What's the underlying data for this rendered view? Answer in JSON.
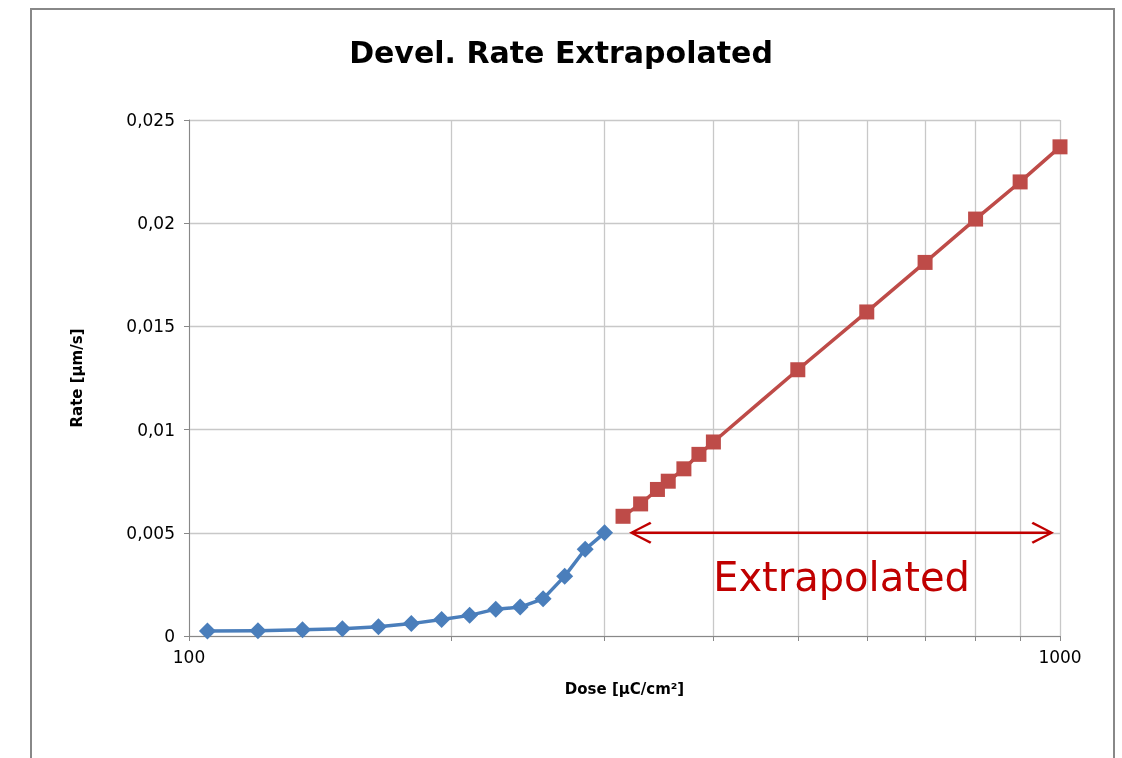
{
  "chart_data": {
    "type": "line",
    "title": "Devel. Rate Extrapolated",
    "xlabel": "Dose [µC/cm²]",
    "ylabel": "Rate [µm/s]",
    "log": "x",
    "xlim": [
      100,
      1000
    ],
    "xticks": [
      100,
      {
        "value": 200,
        "label": null
      },
      {
        "value": 300,
        "label": null
      },
      {
        "value": 400,
        "label": null
      },
      {
        "value": 500,
        "label": null
      },
      {
        "value": 600,
        "label": null
      },
      {
        "value": 700,
        "label": null
      },
      {
        "value": 800,
        "label": null
      },
      {
        "value": 900,
        "label": null
      },
      1000
    ],
    "ylim": [
      0,
      0.025
    ],
    "yticks": [
      0,
      {
        "value": 0.005,
        "label": "0,005"
      },
      {
        "value": 0.01,
        "label": "0,01"
      },
      {
        "value": 0.015,
        "label": "0,015"
      },
      {
        "value": 0.02,
        "label": "0,02"
      },
      {
        "value": 0.025,
        "label": "0,025"
      }
    ],
    "grid": true,
    "series": [
      {
        "color": "#4a7ebb",
        "marker": "diamond",
        "x": [
          105,
          120,
          135,
          150,
          165,
          180,
          195,
          210,
          225,
          240,
          255,
          270,
          285,
          300
        ],
        "values": [
          0.00024,
          0.00025,
          0.0003,
          0.00035,
          0.00045,
          0.0006,
          0.0008,
          0.001,
          0.0013,
          0.0014,
          0.0018,
          0.0029,
          0.0042,
          0.005
        ]
      },
      {
        "color": "#be4b48",
        "marker": "square",
        "x": [
          315,
          330,
          345,
          355,
          370,
          385,
          400,
          500,
          600,
          700,
          800,
          900,
          1000
        ],
        "values": [
          0.0058,
          0.0064,
          0.0071,
          0.0075,
          0.0081,
          0.0088,
          0.0094,
          0.0129,
          0.0157,
          0.0181,
          0.0202,
          0.022,
          0.0237
        ]
      }
    ],
    "annotations": [
      "Extrapolated"
    ]
  }
}
